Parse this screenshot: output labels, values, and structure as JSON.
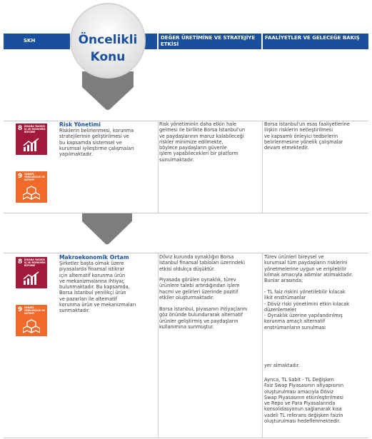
{
  "header": {
    "col1": "SKH",
    "col2": "Öncelikli Konu",
    "col3": "DEĞER ÜRETİMİNE VE STRATEJİYE ETKİSİ",
    "col4": "FAALİYETLER VE GELECEĞE BAKIŞ"
  },
  "sdg_labels": {
    "goal8_num": "8",
    "goal8_text": "İNSANA YAKIŞIR İŞ VE EKONOMİK BÜYÜME",
    "goal9_num": "9",
    "goal9_text": "SANAYİ, YENİLİKÇİLİK VE ALTYAPI"
  },
  "rows": [
    {
      "title": "Risk Yönetimi",
      "description": "Risklerin belirlenmesi, korunma\nstratejilerinin geliştirilmesi ve\nbu kapsamda sistemsel ve\nkurumsal iyileştirme çalışmaları\nyapılmaktadır.",
      "impact": "Risk yönetiminin daha etkin hale\ngelmesi ile birlikte Borsa İstanbul'un\nve paydaşlarının maruz kalabileceği\nriskler minimize edilmekte,\nböylece paydaşların güvenle\nişlem yapabilecekleri bir platform\nsunulmaktadır.",
      "activities": "Borsa İstanbul'un esas faaliyetlerine\nilişkin risklerin netleştirilmesi\nve kapsamlı önleyici tedbirlerin\nbelirlenmesine yönelik çalışmalar\ndevam etmektedir."
    },
    {
      "title": "Makroekonomik Ortam",
      "description": "Şirketler başta olmak üzere\npiyasalarda finansal istikrar\niçin alternatif korunma ürün\nve mekanizmalarına ihtiyaç\nbulunmaktadır. Bu kapsamda,\nBorsa İstanbul yenilikçi ürün\nve pazarları ile alternatif\nkorunma ürün ve mekanizmaları\nsunmaktadır.",
      "impact_p1": "Döviz kurunda oynaklığın Borsa\nİstanbul finansal tabloları üzerindeki\netkisi oldukça düşüktür.",
      "impact_p2": "Piyasada görülen oynaklık, türev\nürünlere talebi artırdığından işlem\nhacmi ve gelirleri üzerinde pozitif\netkiler oluşturmaktadır.",
      "impact_p3": "Borsa İstanbul, piyasanın ihtiyaçlarını\ngöz önünde bulundurarak alternatif\nürünler geliştirmiş ve paydaşların\nkullanımına sunmuştur.",
      "activities_p1": "Türev ürünleri bireysel ve\nkurumsal tüm paydaşların risklerini\nyönetmelerine uygun ve erişilebilir\nkılmak amacıyla adımlar atılmaktadır.\nBunlar arasında;",
      "activities_p2": "- TL faiz riskini yönetilebilir kılacak\nlikit enstrümanlar\n- Döviz riski yönetimini etkin kılacak\ndüzenlemeler\n- Oynaklık üzerine yapılandırılmış\nkorunma amaçlı alternatif\nenstrümanların sunulması",
      "activities_p3": "yer almaktadır.",
      "activities_p4": "Ayrıca, TL Sabit - TL Değişken\nFaiz Swap Piyasasının altyapısının\noluşturulması amacıyla Döviz\nSwap Piyasasının etkinleştirilmesi\nve Repo ve Para Piyasalarında\nkonsolidasyonun sağlanarak kısa\nvadeli TL referans değişken faizin\noluşturulması hedeflenmektedir."
    }
  ],
  "colors": {
    "header_blue": "#1a4f9e",
    "arrow_gray": "#7d7d7d",
    "sdg8": "#a3193c",
    "sdg9": "#f06b2b"
  }
}
